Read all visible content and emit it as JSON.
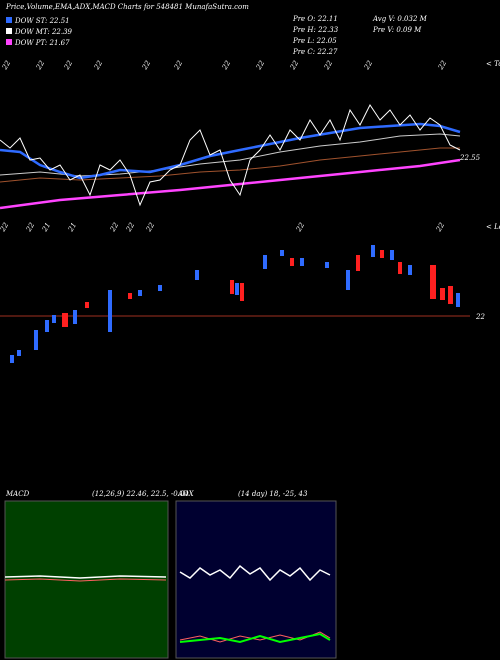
{
  "header": {
    "title": "Price,Volume,EMA,ADX,MACD Charts for 548481 MunafaSutra.com"
  },
  "legend": [
    {
      "label": "DOW ST: 22.51",
      "color": "#2f6bff"
    },
    {
      "label": "DOW MT: 22.39",
      "color": "#ffffff"
    },
    {
      "label": "DOW PT: 21.67",
      "color": "#ff44ff"
    }
  ],
  "info": {
    "left": [
      "Pre  O: 22.11",
      "Pre  H: 22.33",
      "Pre  L: 22.05",
      "Pre  C: 22.27"
    ],
    "right": [
      "Avg V: 0.032  M",
      "Pre  V: 0.09 M"
    ]
  },
  "price_panel": {
    "tops_label": "< Tops",
    "lows_label": "< Lows",
    "last_label": "22.55",
    "top_dates": [
      "22",
      "22",
      "22",
      "22",
      "22",
      "22",
      "22",
      "22",
      "22",
      "22",
      "22",
      "22"
    ],
    "bottom_dates": [
      "22",
      "22",
      "21",
      "21",
      "22",
      "22",
      "22",
      "22",
      "22"
    ]
  },
  "candle_panel": {
    "level_label": "22"
  },
  "macd": {
    "name": "MACD",
    "params": "(12,26,9) 22.46, 22.5, -0.04"
  },
  "adx": {
    "name": "ADX",
    "params": "(14 day) 18, -25, 43"
  }
}
